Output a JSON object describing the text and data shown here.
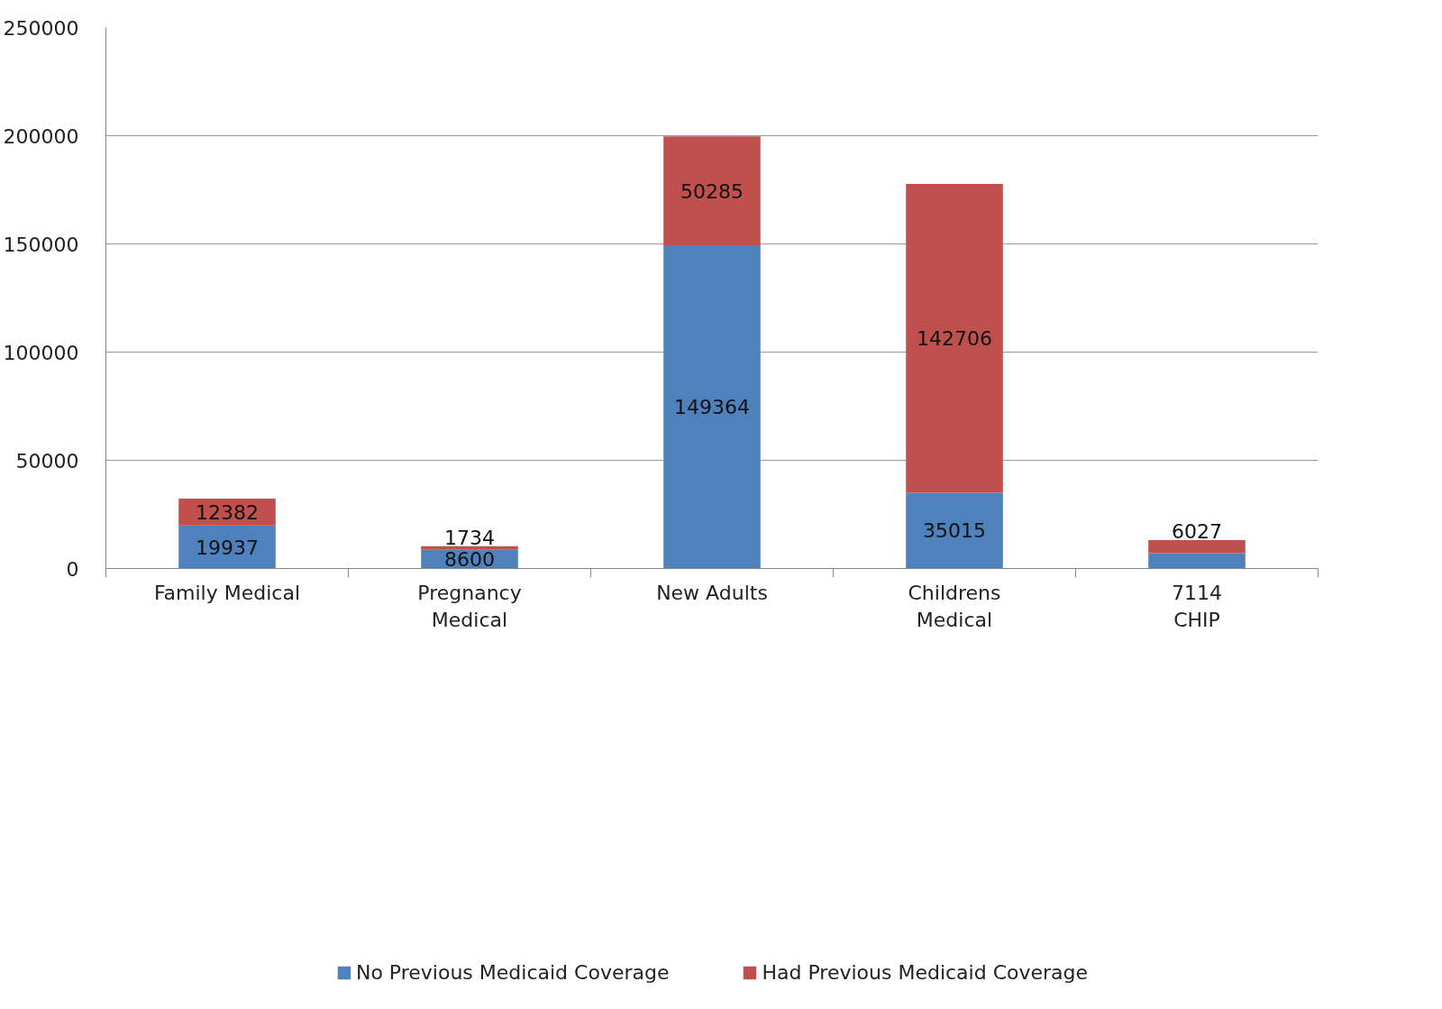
{
  "chart_data": {
    "type": "bar",
    "stacked": true,
    "categories": [
      "Family Medical",
      "Pregnancy Medical",
      "New Adults",
      "Childrens Medical",
      "CHIP"
    ],
    "series": [
      {
        "name": "No Previous Medicaid Coverage",
        "color": "#4f81bd",
        "values": [
          19937,
          8600,
          149364,
          35015,
          7114
        ]
      },
      {
        "name": "Had Previous Medicaid Coverage",
        "color": "#c0504d",
        "values": [
          12382,
          1734,
          50285,
          142706,
          6027
        ]
      }
    ],
    "ylim": [
      0,
      250000
    ],
    "yticks": [
      0,
      50000,
      100000,
      150000,
      200000,
      250000
    ],
    "grid": "y",
    "legend": "bottom",
    "data_labels": true
  }
}
